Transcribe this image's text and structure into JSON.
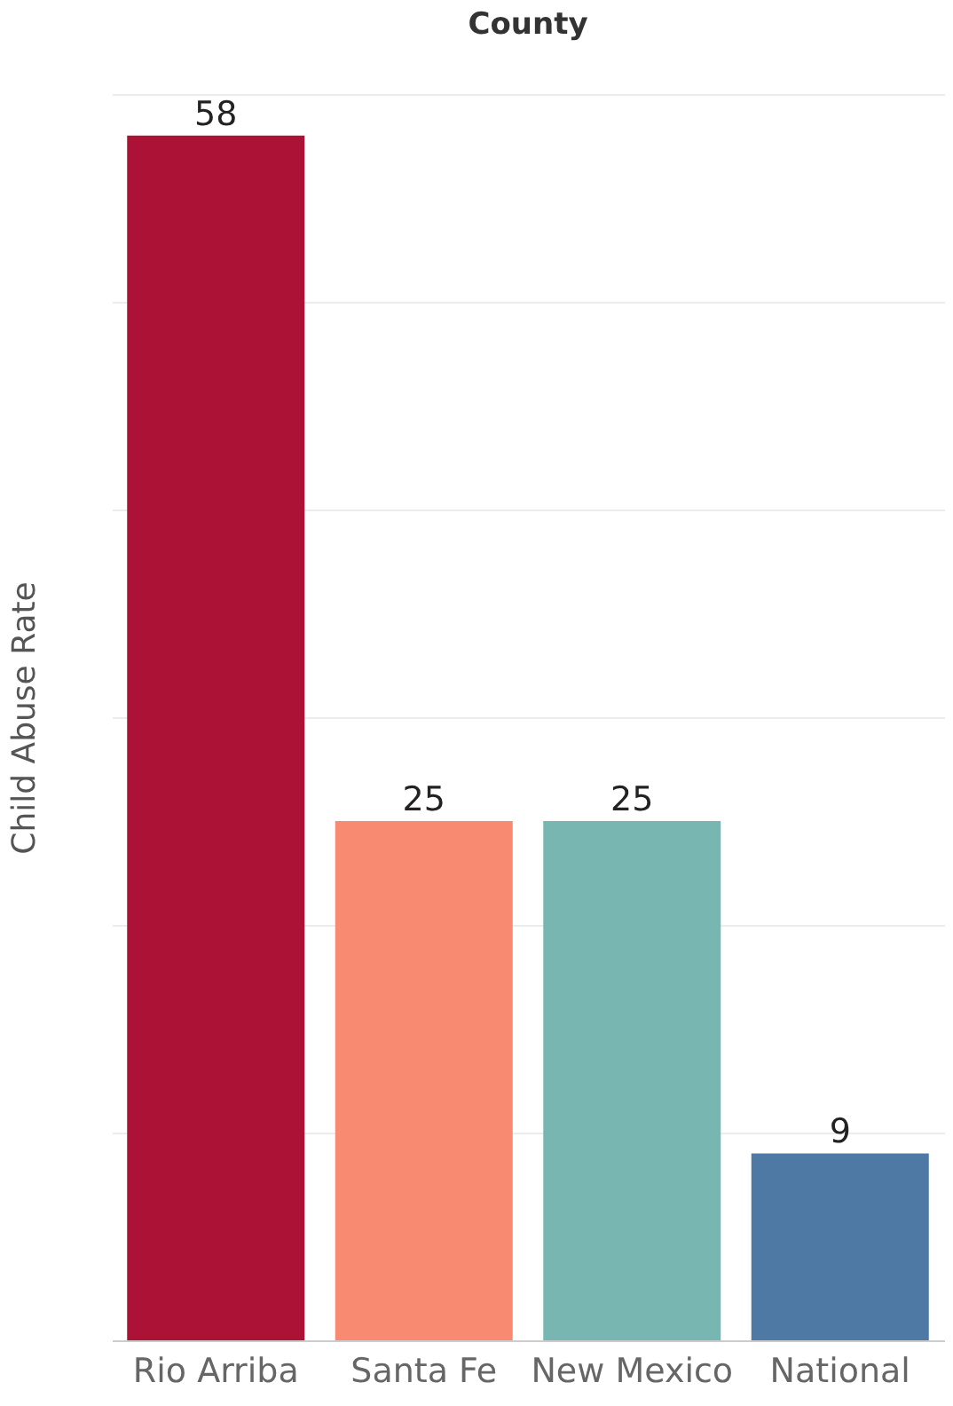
{
  "chart_data": {
    "type": "bar",
    "xlabel": "County",
    "ylabel": "Child Abuse Rate",
    "categories": [
      "Rio Arriba",
      "Santa Fe",
      "New Mexico",
      "National"
    ],
    "values": [
      58,
      25,
      25,
      9
    ],
    "colors": [
      "#ac1236",
      "#f78a70",
      "#78b7b1",
      "#4e79a5"
    ],
    "ylim": [
      0,
      60
    ],
    "yticks": [
      {
        "value": 0,
        "label": null
      },
      {
        "value": 10,
        "label": null
      },
      {
        "value": 20,
        "label": null
      },
      {
        "value": 30,
        "label": null
      },
      {
        "value": 40,
        "label": null
      },
      {
        "value": 50,
        "label": null
      },
      {
        "value": 60,
        "label": null
      }
    ],
    "grid": "y",
    "tick_labels": "x",
    "data_labels": true
  }
}
